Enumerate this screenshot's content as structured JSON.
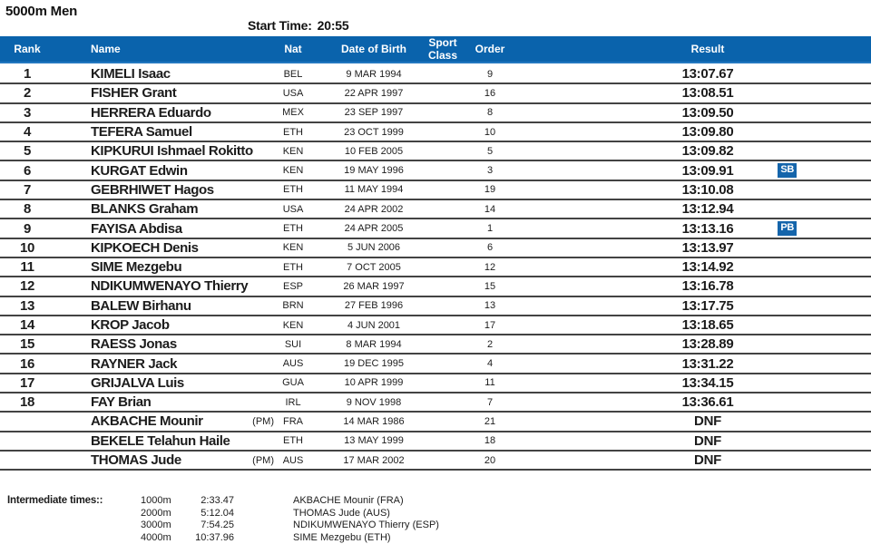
{
  "page": {
    "title": "5000m Men",
    "start_time_label": "Start Time:",
    "start_time_value": "20:55"
  },
  "colors": {
    "header_blue": "#0a63ac",
    "badge_blue": "#1565ab",
    "row_line": "#434343"
  },
  "table": {
    "columns": [
      "Rank",
      "Name",
      "Nat",
      "Date of Birth",
      "Sport Class",
      "Order",
      "Result"
    ],
    "rows": [
      {
        "rank": "1",
        "name": "KIMELI Isaac",
        "pm": "",
        "nat": "BEL",
        "dob": "9 MAR 1994",
        "sport_class": "",
        "order": "9",
        "result": "13:07.67",
        "badge": ""
      },
      {
        "rank": "2",
        "name": "FISHER Grant",
        "pm": "",
        "nat": "USA",
        "dob": "22 APR 1997",
        "sport_class": "",
        "order": "16",
        "result": "13:08.51",
        "badge": ""
      },
      {
        "rank": "3",
        "name": "HERRERA Eduardo",
        "pm": "",
        "nat": "MEX",
        "dob": "23 SEP 1997",
        "sport_class": "",
        "order": "8",
        "result": "13:09.50",
        "badge": ""
      },
      {
        "rank": "4",
        "name": "TEFERA Samuel",
        "pm": "",
        "nat": "ETH",
        "dob": "23 OCT 1999",
        "sport_class": "",
        "order": "10",
        "result": "13:09.80",
        "badge": ""
      },
      {
        "rank": "5",
        "name": "KIPKURUI Ishmael Rokitto",
        "pm": "",
        "nat": "KEN",
        "dob": "10 FEB 2005",
        "sport_class": "",
        "order": "5",
        "result": "13:09.82",
        "badge": ""
      },
      {
        "rank": "6",
        "name": "KURGAT Edwin",
        "pm": "",
        "nat": "KEN",
        "dob": "19 MAY 1996",
        "sport_class": "",
        "order": "3",
        "result": "13:09.91",
        "badge": "SB"
      },
      {
        "rank": "7",
        "name": "GEBRHIWET Hagos",
        "pm": "",
        "nat": "ETH",
        "dob": "11 MAY 1994",
        "sport_class": "",
        "order": "19",
        "result": "13:10.08",
        "badge": ""
      },
      {
        "rank": "8",
        "name": "BLANKS Graham",
        "pm": "",
        "nat": "USA",
        "dob": "24 APR 2002",
        "sport_class": "",
        "order": "14",
        "result": "13:12.94",
        "badge": ""
      },
      {
        "rank": "9",
        "name": "FAYISA Abdisa",
        "pm": "",
        "nat": "ETH",
        "dob": "24 APR 2005",
        "sport_class": "",
        "order": "1",
        "result": "13:13.16",
        "badge": "PB"
      },
      {
        "rank": "10",
        "name": "KIPKOECH Denis",
        "pm": "",
        "nat": "KEN",
        "dob": "5 JUN 2006",
        "sport_class": "",
        "order": "6",
        "result": "13:13.97",
        "badge": ""
      },
      {
        "rank": "11",
        "name": "SIME Mezgebu",
        "pm": "",
        "nat": "ETH",
        "dob": "7 OCT 2005",
        "sport_class": "",
        "order": "12",
        "result": "13:14.92",
        "badge": ""
      },
      {
        "rank": "12",
        "name": "NDIKUMWENAYO Thierry",
        "pm": "",
        "nat": "ESP",
        "dob": "26 MAR 1997",
        "sport_class": "",
        "order": "15",
        "result": "13:16.78",
        "badge": ""
      },
      {
        "rank": "13",
        "name": "BALEW Birhanu",
        "pm": "",
        "nat": "BRN",
        "dob": "27 FEB 1996",
        "sport_class": "",
        "order": "13",
        "result": "13:17.75",
        "badge": ""
      },
      {
        "rank": "14",
        "name": "KROP Jacob",
        "pm": "",
        "nat": "KEN",
        "dob": "4 JUN 2001",
        "sport_class": "",
        "order": "17",
        "result": "13:18.65",
        "badge": ""
      },
      {
        "rank": "15",
        "name": "RAESS Jonas",
        "pm": "",
        "nat": "SUI",
        "dob": "8 MAR 1994",
        "sport_class": "",
        "order": "2",
        "result": "13:28.89",
        "badge": ""
      },
      {
        "rank": "16",
        "name": "RAYNER Jack",
        "pm": "",
        "nat": "AUS",
        "dob": "19 DEC 1995",
        "sport_class": "",
        "order": "4",
        "result": "13:31.22",
        "badge": ""
      },
      {
        "rank": "17",
        "name": "GRIJALVA Luis",
        "pm": "",
        "nat": "GUA",
        "dob": "10 APR 1999",
        "sport_class": "",
        "order": "11",
        "result": "13:34.15",
        "badge": ""
      },
      {
        "rank": "18",
        "name": "FAY Brian",
        "pm": "",
        "nat": "IRL",
        "dob": "9 NOV 1998",
        "sport_class": "",
        "order": "7",
        "result": "13:36.61",
        "badge": ""
      },
      {
        "rank": "",
        "name": "AKBACHE Mounir",
        "pm": "(PM)",
        "nat": "FRA",
        "dob": "14 MAR 1986",
        "sport_class": "",
        "order": "21",
        "result": "DNF",
        "badge": ""
      },
      {
        "rank": "",
        "name": "BEKELE Telahun Haile",
        "pm": "",
        "nat": "ETH",
        "dob": "13 MAY 1999",
        "sport_class": "",
        "order": "18",
        "result": "DNF",
        "badge": ""
      },
      {
        "rank": "",
        "name": "THOMAS Jude",
        "pm": "(PM)",
        "nat": "AUS",
        "dob": "17 MAR 2002",
        "sport_class": "",
        "order": "20",
        "result": "DNF",
        "badge": ""
      }
    ]
  },
  "intermediate": {
    "label": "Intermediate times::",
    "rows": [
      {
        "distance": "1000m",
        "time": "2:33.47",
        "athlete": "AKBACHE Mounir (FRA)"
      },
      {
        "distance": "2000m",
        "time": "5:12.04",
        "athlete": "THOMAS Jude (AUS)"
      },
      {
        "distance": "3000m",
        "time": "7:54.25",
        "athlete": "NDIKUMWENAYO Thierry (ESP)"
      },
      {
        "distance": "4000m",
        "time": "10:37.96",
        "athlete": "SIME Mezgebu (ETH)"
      }
    ]
  }
}
